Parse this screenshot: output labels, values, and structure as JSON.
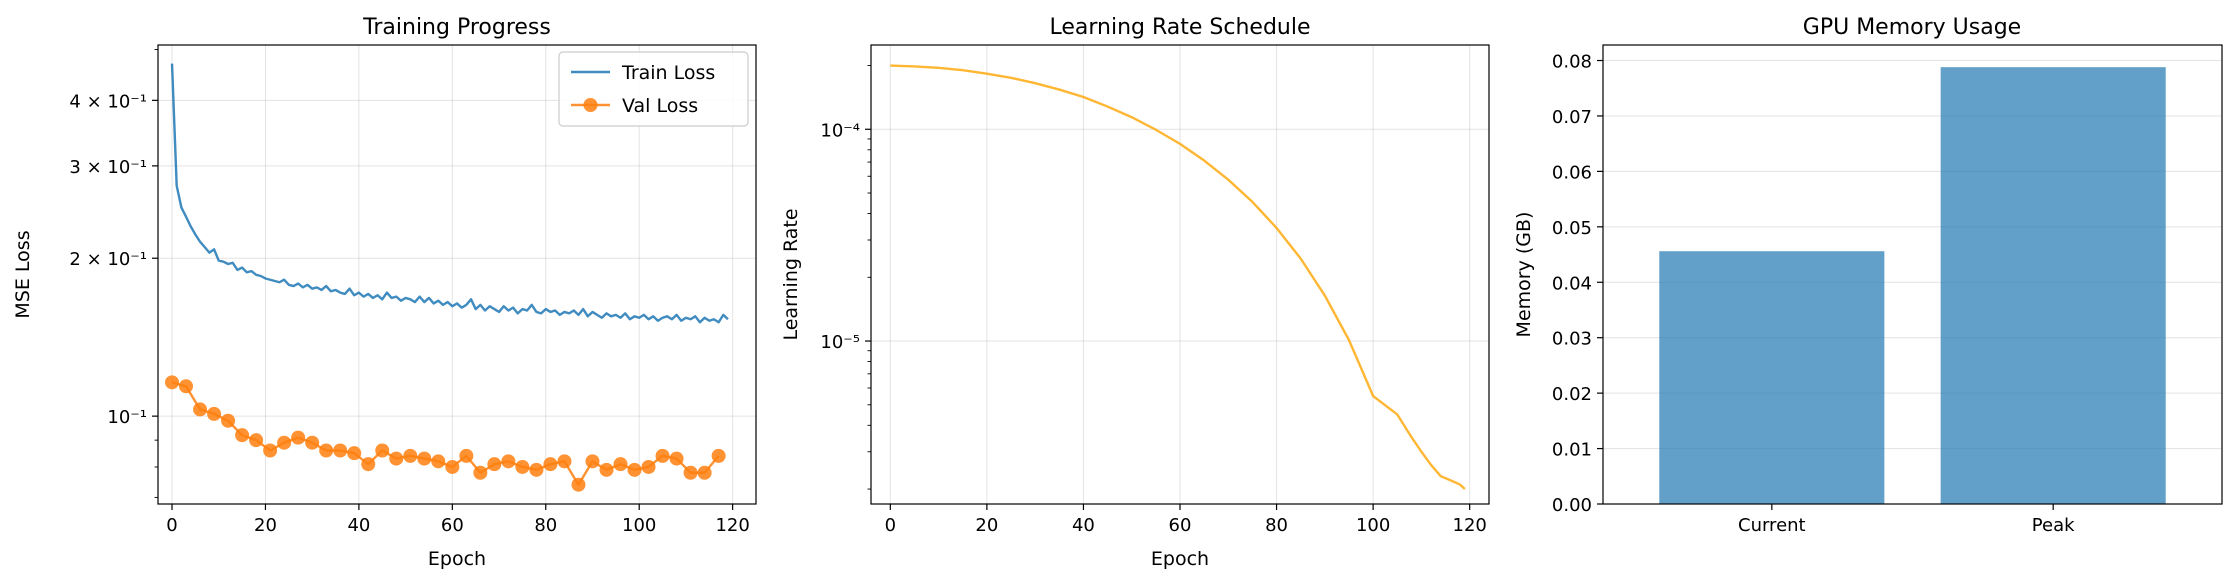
{
  "chart_data": [
    {
      "type": "line",
      "title": "Training Progress",
      "xlabel": "Epoch",
      "ylabel": "MSE Loss",
      "yscale": "log",
      "xlim": [
        -3,
        125
      ],
      "ylim": [
        0.068,
        0.51
      ],
      "xticks": [
        0,
        20,
        40,
        60,
        80,
        100,
        120
      ],
      "yticks": [
        {
          "value": 0.1,
          "label": "10⁻¹"
        },
        {
          "value": 0.2,
          "label": "2 × 10⁻¹"
        },
        {
          "value": 0.3,
          "label": "3 × 10⁻¹"
        },
        {
          "value": 0.4,
          "label": "4 × 10⁻¹"
        }
      ],
      "grid": true,
      "legend": "top-right",
      "series": [
        {
          "name": "Train Loss",
          "color": "#1f77b4",
          "marker": "none",
          "x": [
            0,
            1,
            2,
            3,
            4,
            5,
            6,
            7,
            8,
            9,
            10,
            11,
            12,
            13,
            14,
            15,
            16,
            17,
            18,
            19,
            20,
            21,
            22,
            23,
            24,
            25,
            26,
            27,
            28,
            29,
            30,
            31,
            32,
            33,
            34,
            35,
            36,
            37,
            38,
            39,
            40,
            41,
            42,
            43,
            44,
            45,
            46,
            47,
            48,
            49,
            50,
            51,
            52,
            53,
            54,
            55,
            56,
            57,
            58,
            59,
            60,
            61,
            62,
            63,
            64,
            65,
            66,
            67,
            68,
            69,
            70,
            71,
            72,
            73,
            74,
            75,
            76,
            77,
            78,
            79,
            80,
            81,
            82,
            83,
            84,
            85,
            86,
            87,
            88,
            89,
            90,
            91,
            92,
            93,
            94,
            95,
            96,
            97,
            98,
            99,
            100,
            101,
            102,
            103,
            104,
            105,
            106,
            107,
            108,
            109,
            110,
            111,
            112,
            113,
            114,
            115,
            116,
            117,
            118,
            119
          ],
          "y": [
            0.47,
            0.275,
            0.25,
            0.24,
            0.23,
            0.222,
            0.215,
            0.21,
            0.205,
            0.208,
            0.198,
            0.197,
            0.195,
            0.196,
            0.19,
            0.192,
            0.188,
            0.189,
            0.186,
            0.185,
            0.183,
            0.182,
            0.181,
            0.18,
            0.182,
            0.178,
            0.177,
            0.179,
            0.176,
            0.178,
            0.175,
            0.176,
            0.174,
            0.177,
            0.173,
            0.174,
            0.172,
            0.171,
            0.175,
            0.17,
            0.172,
            0.169,
            0.171,
            0.168,
            0.17,
            0.167,
            0.172,
            0.168,
            0.169,
            0.166,
            0.168,
            0.167,
            0.165,
            0.169,
            0.165,
            0.168,
            0.164,
            0.166,
            0.163,
            0.165,
            0.162,
            0.164,
            0.161,
            0.163,
            0.167,
            0.16,
            0.163,
            0.159,
            0.162,
            0.16,
            0.158,
            0.162,
            0.159,
            0.161,
            0.157,
            0.16,
            0.159,
            0.163,
            0.158,
            0.157,
            0.16,
            0.158,
            0.159,
            0.156,
            0.158,
            0.157,
            0.159,
            0.156,
            0.16,
            0.155,
            0.158,
            0.156,
            0.154,
            0.157,
            0.155,
            0.156,
            0.154,
            0.157,
            0.153,
            0.155,
            0.154,
            0.156,
            0.153,
            0.155,
            0.152,
            0.154,
            0.155,
            0.153,
            0.156,
            0.152,
            0.154,
            0.153,
            0.155,
            0.151,
            0.154,
            0.152,
            0.153,
            0.151,
            0.156,
            0.153
          ]
        },
        {
          "name": "Val Loss",
          "color": "#ff7f0e",
          "marker": "circle",
          "x": [
            0,
            3,
            6,
            9,
            12,
            15,
            18,
            21,
            24,
            27,
            30,
            33,
            36,
            39,
            42,
            45,
            48,
            51,
            54,
            57,
            60,
            63,
            66,
            69,
            72,
            75,
            78,
            81,
            84,
            87,
            90,
            93,
            96,
            99,
            102,
            105,
            108,
            111,
            114,
            117
          ],
          "y": [
            0.116,
            0.114,
            0.103,
            0.101,
            0.098,
            0.092,
            0.09,
            0.086,
            0.089,
            0.091,
            0.089,
            0.086,
            0.086,
            0.085,
            0.081,
            0.086,
            0.083,
            0.084,
            0.083,
            0.082,
            0.08,
            0.084,
            0.078,
            0.081,
            0.082,
            0.08,
            0.079,
            0.081,
            0.082,
            0.074,
            0.082,
            0.079,
            0.081,
            0.079,
            0.08,
            0.084,
            0.083,
            0.078,
            0.078,
            0.084
          ]
        }
      ]
    },
    {
      "type": "line",
      "title": "Learning Rate Schedule",
      "xlabel": "Epoch",
      "ylabel": "Learning Rate",
      "yscale": "log",
      "xlim": [
        -4,
        124
      ],
      "ylim": [
        1.7e-06,
        0.00025
      ],
      "xticks": [
        0,
        20,
        40,
        60,
        80,
        100,
        120
      ],
      "yticks": [
        {
          "value": 1e-05,
          "label": "10⁻⁵"
        },
        {
          "value": 0.0001,
          "label": "10⁻⁴"
        }
      ],
      "grid": true,
      "series": [
        {
          "color": "#ffa500",
          "x": [
            0,
            5,
            10,
            15,
            20,
            25,
            30,
            35,
            40,
            45,
            50,
            55,
            60,
            65,
            70,
            75,
            80,
            85,
            90,
            95,
            100,
            105,
            108,
            110,
            112,
            114,
            116,
            118,
            119
          ],
          "y": [
            0.0002,
            0.000198,
            0.000195,
            0.00019,
            0.000183,
            0.000175,
            0.000165,
            0.000154,
            0.000142,
            0.000128,
            0.000114,
            9.95e-05,
            8.53e-05,
            7.12e-05,
            5.78e-05,
            4.54e-05,
            3.42e-05,
            2.45e-05,
            1.64e-05,
            1.01e-05,
            5.5e-06,
            4.5e-06,
            3.5e-06,
            3e-06,
            2.6e-06,
            2.3e-06,
            2.2e-06,
            2.1e-06,
            2e-06
          ]
        }
      ]
    },
    {
      "type": "bar",
      "title": "GPU Memory Usage",
      "xlabel": "",
      "ylabel": "Memory (GB)",
      "categories": [
        "Current",
        "Peak"
      ],
      "values": [
        0.0456,
        0.0788
      ],
      "ylim": [
        0,
        0.0828
      ],
      "yticks": [
        {
          "value": 0,
          "label": "0.00"
        },
        {
          "value": 0.01,
          "label": "0.01"
        },
        {
          "value": 0.02,
          "label": "0.02"
        },
        {
          "value": 0.03,
          "label": "0.03"
        },
        {
          "value": 0.04,
          "label": "0.04"
        },
        {
          "value": 0.05,
          "label": "0.05"
        },
        {
          "value": 0.06,
          "label": "0.06"
        },
        {
          "value": 0.07,
          "label": "0.07"
        },
        {
          "value": 0.08,
          "label": "0.08"
        }
      ],
      "grid": true,
      "color": "#1f77b4"
    }
  ]
}
